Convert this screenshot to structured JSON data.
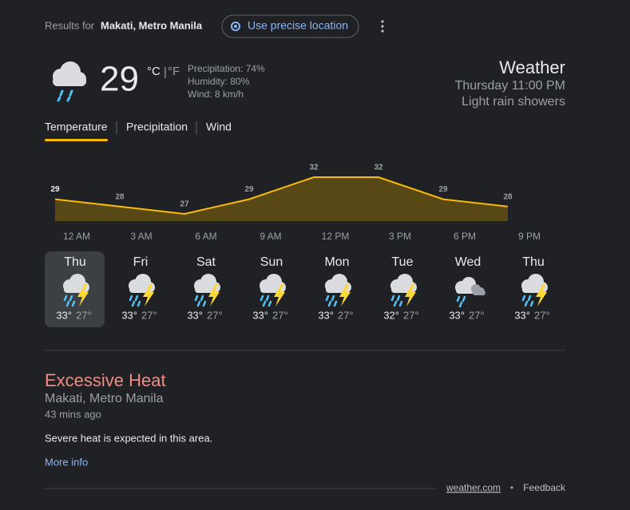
{
  "header": {
    "results_for": "Results for",
    "location": "Makati, Metro Manila",
    "precise_button": "Use precise location"
  },
  "current": {
    "temp": "29",
    "unit_c": "°C",
    "unit_sep": "|",
    "unit_f": "°F",
    "precipitation": "Precipitation: 74%",
    "humidity": "Humidity: 80%",
    "wind": "Wind: 8 km/h",
    "title": "Weather",
    "time": "Thursday 11:00 PM",
    "condition": "Light rain showers"
  },
  "tabs": [
    "Temperature",
    "Precipitation",
    "Wind"
  ],
  "chart_data": {
    "type": "area",
    "x": [
      "12 AM",
      "3 AM",
      "6 AM",
      "9 AM",
      "12 PM",
      "3 PM",
      "6 PM",
      "9 PM"
    ],
    "values": [
      29,
      28,
      27,
      29,
      32,
      32,
      29,
      28
    ],
    "color": "#fbbc04"
  },
  "forecast": [
    {
      "day": "Thu",
      "high": "33°",
      "low": "27°"
    },
    {
      "day": "Fri",
      "high": "33°",
      "low": "27°"
    },
    {
      "day": "Sat",
      "high": "33°",
      "low": "27°"
    },
    {
      "day": "Sun",
      "high": "33°",
      "low": "27°"
    },
    {
      "day": "Mon",
      "high": "33°",
      "low": "27°"
    },
    {
      "day": "Tue",
      "high": "32°",
      "low": "27°"
    },
    {
      "day": "Wed",
      "high": "33°",
      "low": "27°"
    },
    {
      "day": "Thu",
      "high": "33°",
      "low": "27°"
    }
  ],
  "alert": {
    "title": "Excessive Heat",
    "location": "Makati, Metro Manila",
    "time": "43 mins ago",
    "description": "Severe heat is expected in this area.",
    "link": "More info"
  },
  "footer": {
    "source": "weather.com",
    "separator": "•",
    "feedback": "Feedback"
  }
}
